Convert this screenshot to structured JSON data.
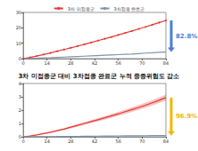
{
  "chart_data": [
    {
      "type": "line",
      "legend": "top",
      "grid": false,
      "xlim": [
        0,
        84
      ],
      "xticks": [
        0,
        14,
        28,
        42,
        56,
        70,
        84
      ],
      "ylim": [
        0,
        30
      ],
      "yticks": [
        0,
        10,
        20,
        30
      ],
      "x": [
        0,
        4,
        8,
        12,
        16,
        20,
        24,
        28,
        32,
        36,
        40,
        44,
        48,
        52,
        56,
        60,
        64,
        68,
        72,
        76,
        80,
        84
      ],
      "series": [
        {
          "name": "3차 미접종군",
          "color": "#e53935",
          "marker": "circle",
          "values": [
            0,
            0.8,
            1.7,
            2.7,
            3.7,
            4.8,
            5.9,
            7.0,
            8.1,
            9.3,
            10.5,
            11.7,
            12.9,
            14.1,
            15.4,
            16.7,
            18.0,
            19.3,
            20.6,
            22.0,
            23.4,
            24.8
          ]
        },
        {
          "name": "3차접종 완료군",
          "color": "#7f93a8",
          "values": [
            0,
            0.15,
            0.3,
            0.45,
            0.6,
            0.8,
            1.0,
            1.2,
            1.4,
            1.6,
            1.8,
            2.0,
            2.2,
            2.4,
            2.6,
            2.8,
            3.0,
            3.3,
            3.6,
            3.8,
            4.1,
            4.3
          ]
        }
      ],
      "annotations": [
        {
          "text": "82.8%",
          "color": "#4a7fd4"
        }
      ]
    },
    {
      "type": "line",
      "title": "3차 미접종군 대비 3차접종 완료군 누적 중증위험도 감소",
      "grid": false,
      "xlim": [
        0,
        84
      ],
      "xticks": [
        0,
        14,
        28,
        42,
        56,
        70,
        84
      ],
      "ylim": [
        0,
        4
      ],
      "yticks": [
        0,
        1,
        2,
        3,
        4
      ],
      "x": [
        0,
        4,
        8,
        12,
        16,
        20,
        24,
        28,
        32,
        36,
        40,
        44,
        48,
        52,
        56,
        60,
        64,
        68,
        72,
        76,
        80,
        84
      ],
      "series": [
        {
          "color": "#e53935",
          "values": [
            0,
            0.06,
            0.14,
            0.24,
            0.34,
            0.46,
            0.58,
            0.72,
            0.86,
            1.0,
            1.14,
            1.28,
            1.42,
            1.57,
            1.72,
            1.88,
            2.04,
            2.2,
            2.37,
            2.55,
            2.74,
            2.94
          ],
          "band": {
            "lower": [
              0,
              0.04,
              0.11,
              0.2,
              0.29,
              0.4,
              0.51,
              0.64,
              0.77,
              0.9,
              1.03,
              1.16,
              1.29,
              1.43,
              1.57,
              1.72,
              1.87,
              2.02,
              2.18,
              2.35,
              2.53,
              2.72
            ],
            "upper": [
              0,
              0.08,
              0.17,
              0.28,
              0.39,
              0.52,
              0.65,
              0.8,
              0.95,
              1.1,
              1.25,
              1.4,
              1.55,
              1.71,
              1.87,
              2.04,
              2.21,
              2.38,
              2.56,
              2.75,
              2.95,
              3.16
            ]
          }
        },
        {
          "color": "#7f93a8",
          "values": [
            0,
            0.004,
            0.008,
            0.012,
            0.016,
            0.02,
            0.025,
            0.03,
            0.035,
            0.04,
            0.045,
            0.05,
            0.055,
            0.06,
            0.065,
            0.07,
            0.075,
            0.08,
            0.085,
            0.09,
            0.095,
            0.09
          ]
        }
      ],
      "annotations": [
        {
          "text": "96.9%",
          "color": "#f2b705"
        }
      ]
    }
  ]
}
